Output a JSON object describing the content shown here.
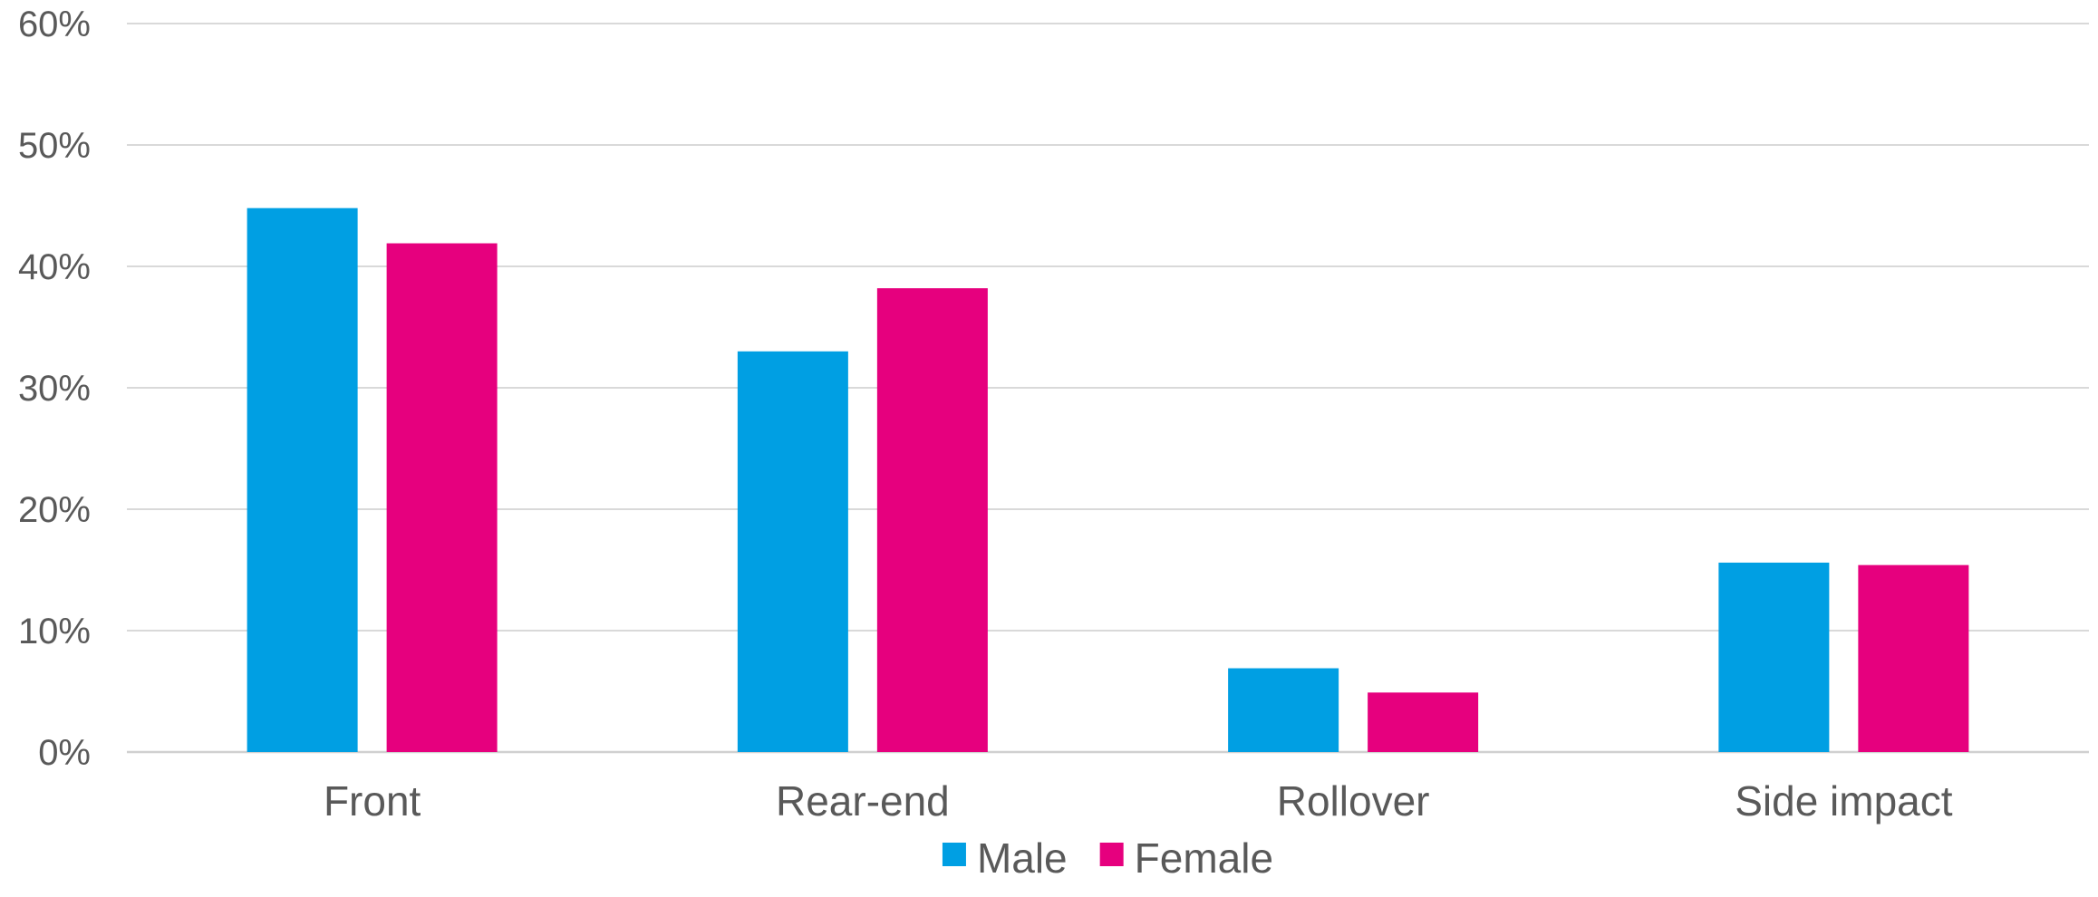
{
  "chart_data": {
    "type": "bar",
    "title": "",
    "xlabel": "",
    "ylabel": "",
    "categories": [
      "Front",
      "Rear-end",
      "Rollover",
      "Side impact"
    ],
    "series": [
      {
        "name": "Male",
        "color": "#009fe3",
        "values": [
          0.448,
          0.33,
          0.069,
          0.156
        ]
      },
      {
        "name": "Female",
        "color": "#e6007e",
        "values": [
          0.419,
          0.382,
          0.049,
          0.154
        ]
      }
    ],
    "ylim": [
      0,
      0.6
    ],
    "yticks": [
      0,
      0.1,
      0.2,
      0.3,
      0.4,
      0.5,
      0.6
    ],
    "ytick_labels": [
      "0%",
      "10%",
      "20%",
      "30%",
      "40%",
      "50%",
      "60%"
    ],
    "y_format": "percent",
    "grid": true,
    "legend_position": "bottom-center"
  }
}
